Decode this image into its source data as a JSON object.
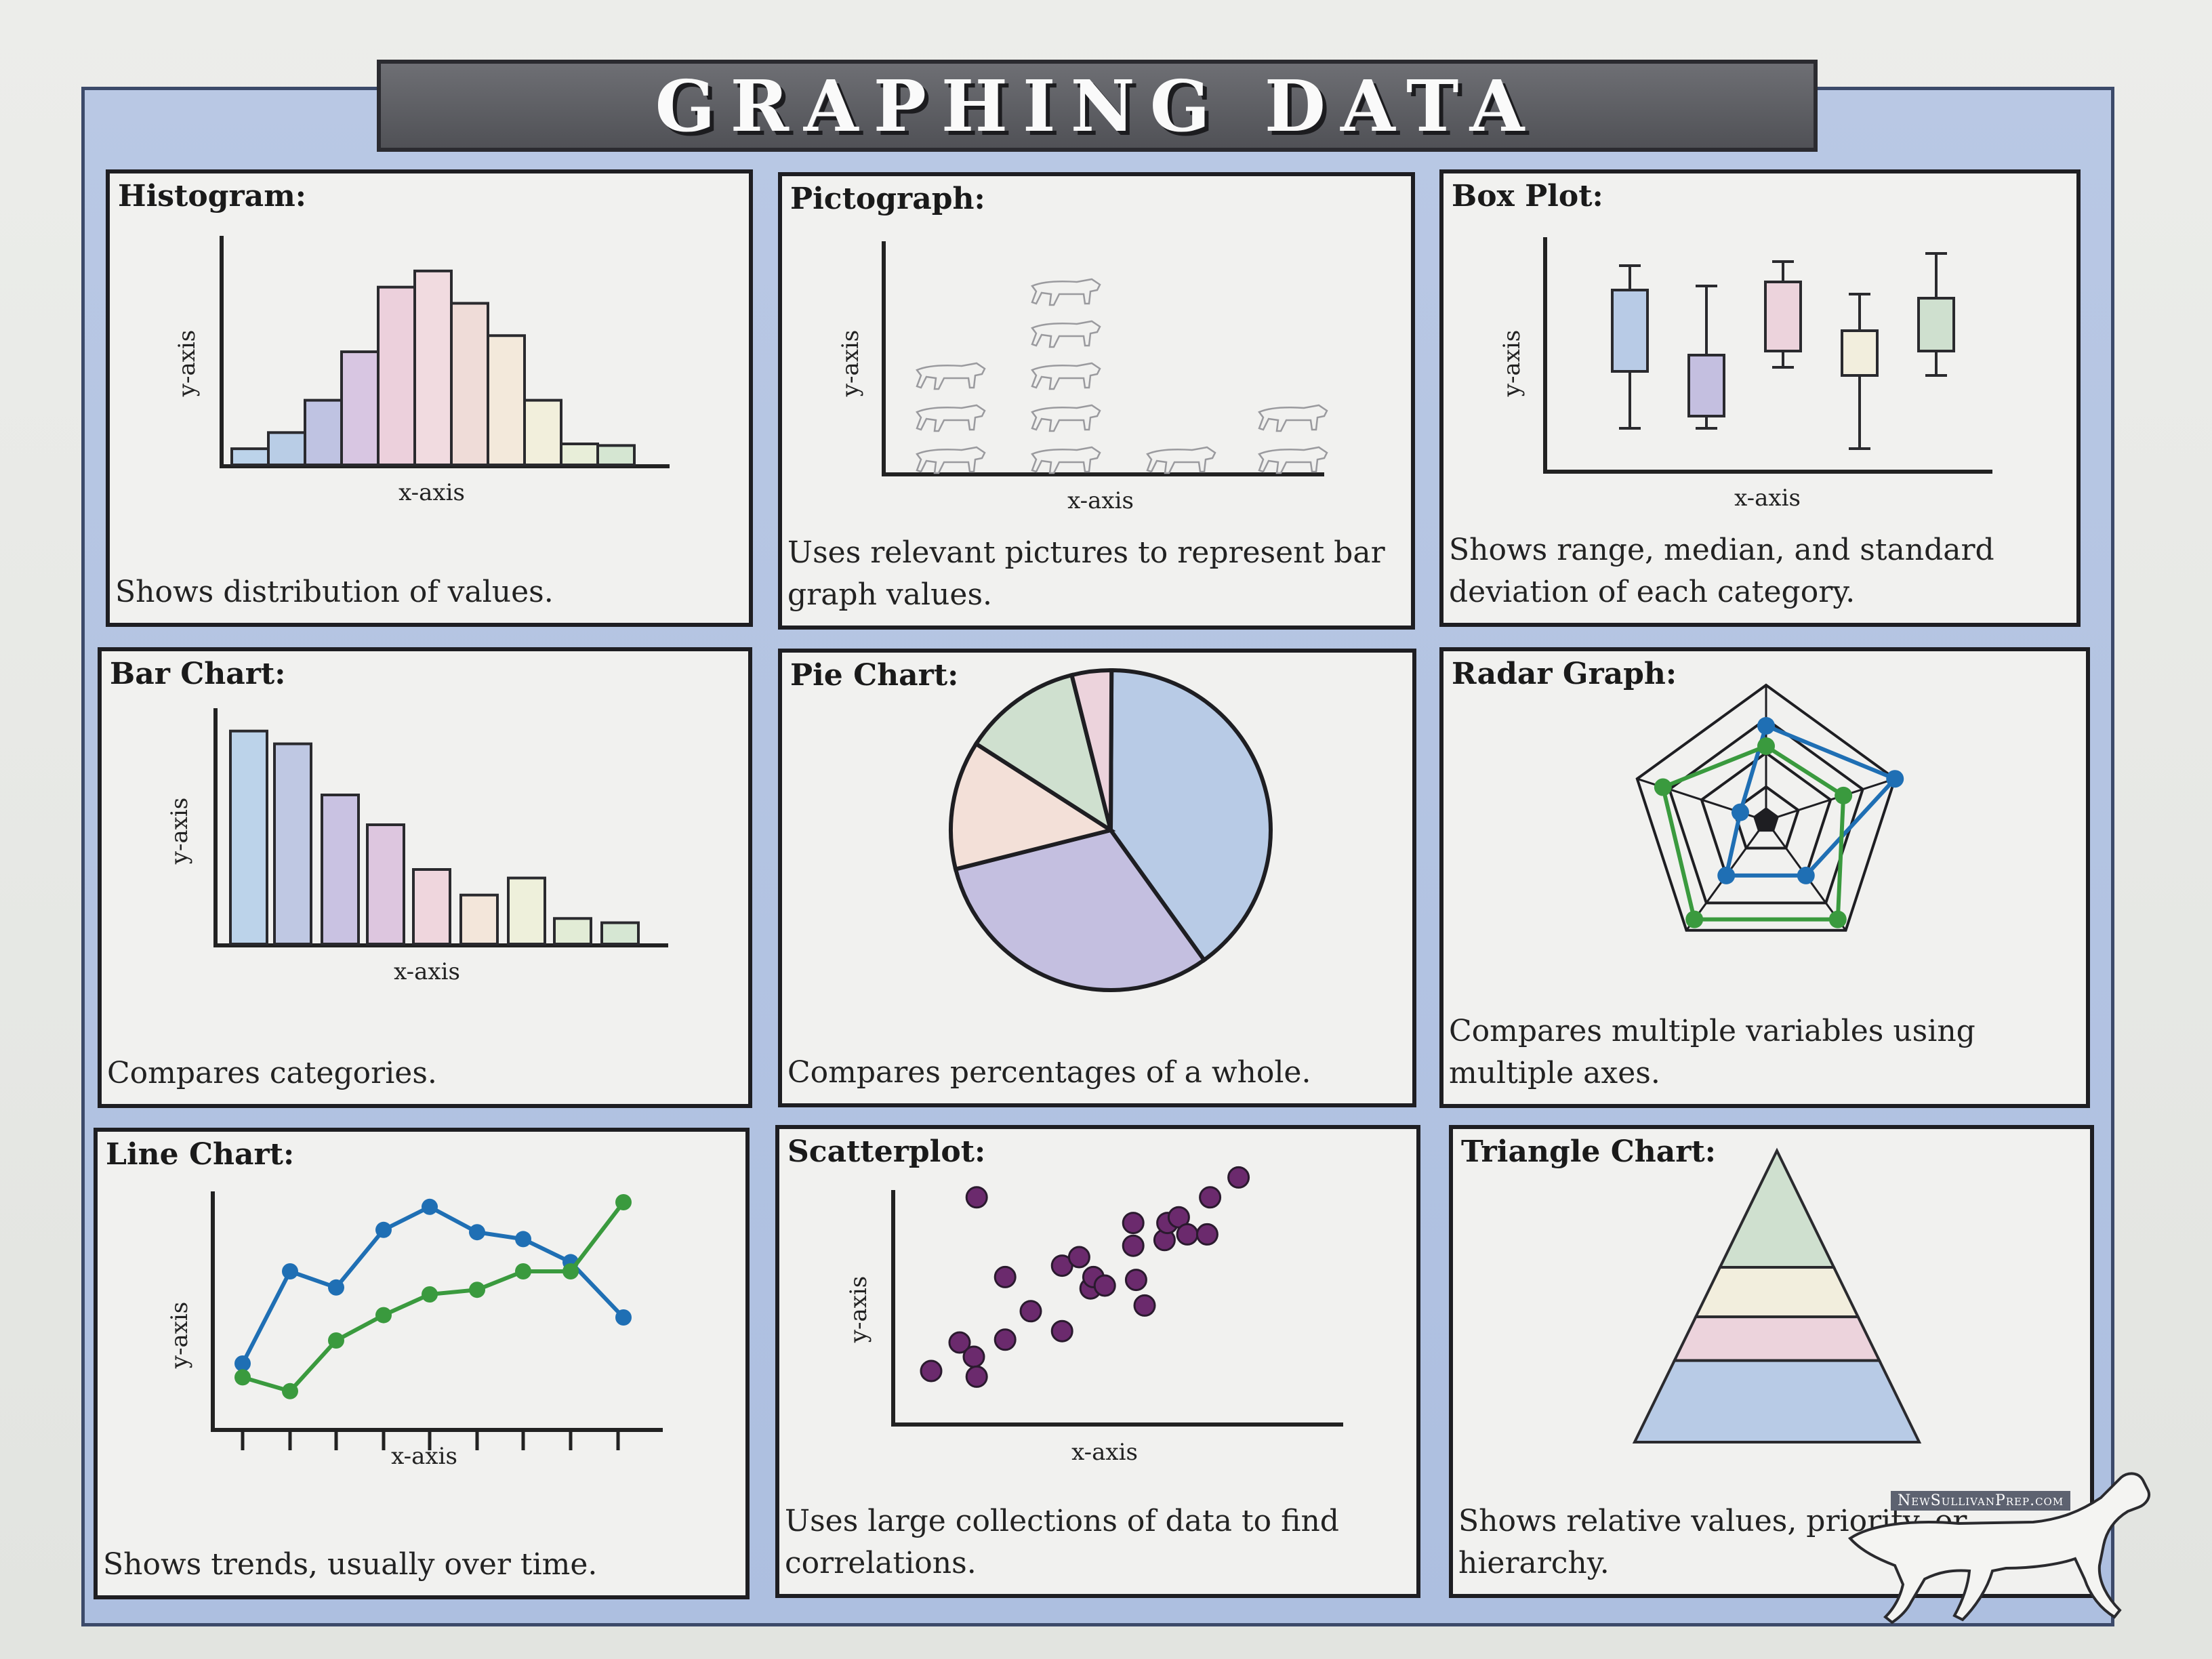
{
  "title": "Graphing Data",
  "watermark": "NewSullivanPrep.com",
  "axis_labels": {
    "x": "x-axis",
    "y": "y-axis"
  },
  "panels": [
    {
      "title": "Histogram:",
      "description": "Shows distribution of values."
    },
    {
      "title": "Pictograph:",
      "description": "Uses relevant pictures to represent bar graph values."
    },
    {
      "title": "Box Plot:",
      "description": "Shows range, median, and standard deviation of each category."
    },
    {
      "title": "Bar Chart:",
      "description": "Compares categories."
    },
    {
      "title": "Pie Chart:",
      "description": "Compares percentages of a whole."
    },
    {
      "title": "Radar Graph:",
      "description": "Compares multiple variables using multiple axes."
    },
    {
      "title": "Line Chart:",
      "description": "Shows trends, usually over time."
    },
    {
      "title": "Scatterplot:",
      "description": "Uses large collections of data to find correlations."
    },
    {
      "title": "Triangle Chart:",
      "description": "Shows relative values, priority, or hierarchy."
    }
  ],
  "colors": {
    "frame": "#b3c4e2",
    "blue": "#b8cbe6",
    "lavender": "#c4bfe0",
    "pink": "#ecd3dc",
    "peach": "#f3e0d8",
    "cream": "#f2eedd",
    "green": "#cfe0cf",
    "line_blue": "#1f6fb4",
    "line_green": "#3a9a3e",
    "dot_purple": "#6b2a6d"
  },
  "chart_data": [
    {
      "type": "bar",
      "values": [
        1,
        2,
        4,
        7,
        11,
        12,
        10,
        8,
        4,
        1.3,
        1.2
      ]
    },
    {
      "type": "bar",
      "values": [
        3,
        5,
        1,
        2
      ]
    },
    {
      "type": "box",
      "values": [
        {
          "min": 1,
          "q1": 2.4,
          "q3": 4.4,
          "max": 5.0
        },
        {
          "min": 1,
          "q1": 1.3,
          "q3": 2.8,
          "max": 4.5
        },
        {
          "min": 2.5,
          "q1": 2.9,
          "q3": 4.6,
          "max": 5.1
        },
        {
          "min": 0.5,
          "q1": 2.3,
          "q3": 3.4,
          "max": 4.3
        },
        {
          "min": 2.3,
          "q1": 2.9,
          "q3": 4.2,
          "max": 5.3
        }
      ]
    },
    {
      "type": "bar",
      "values": [
        10,
        9.4,
        7,
        5.6,
        3.5,
        2.3,
        3.1,
        1.2,
        1
      ]
    },
    {
      "type": "pie",
      "values": [
        40,
        31,
        13,
        12,
        4
      ]
    },
    {
      "type": "radar",
      "series": [
        {
          "values": [
            0.7,
            1.0,
            0.5,
            0.5,
            0.2
          ]
        },
        {
          "values": [
            0.55,
            0.6,
            0.9,
            0.9,
            0.8
          ]
        }
      ]
    },
    {
      "type": "line",
      "series": [
        {
          "values": [
            2,
            6,
            5.3,
            7.8,
            8.8,
            7.7,
            7.4,
            6.4,
            4
          ]
        },
        {
          "values": [
            1.4,
            0.8,
            3,
            4.1,
            5,
            5.2,
            6,
            6,
            9
          ]
        }
      ]
    },
    {
      "type": "scatter",
      "points": [
        [
          2,
          1.5
        ],
        [
          3,
          2.5
        ],
        [
          3.5,
          2
        ],
        [
          3.6,
          1.3
        ],
        [
          3.6,
          7.6
        ],
        [
          4.6,
          2.6
        ],
        [
          4.6,
          4.8
        ],
        [
          5.5,
          3.6
        ],
        [
          6.6,
          2.9
        ],
        [
          6.6,
          5.2
        ],
        [
          7.2,
          5.5
        ],
        [
          7.6,
          4.4
        ],
        [
          7.7,
          4.8
        ],
        [
          8.1,
          4.5
        ],
        [
          9.1,
          6.7
        ],
        [
          9.1,
          5.9
        ],
        [
          9.2,
          4.7
        ],
        [
          9.5,
          3.8
        ],
        [
          10.2,
          6.1
        ],
        [
          10.3,
          6.7
        ],
        [
          10.7,
          6.9
        ],
        [
          11,
          6.3
        ],
        [
          11.7,
          6.3
        ],
        [
          11.8,
          7.6
        ],
        [
          12.8,
          8.3
        ]
      ]
    },
    {
      "type": "area",
      "values": [
        1,
        1,
        1,
        1
      ]
    }
  ]
}
